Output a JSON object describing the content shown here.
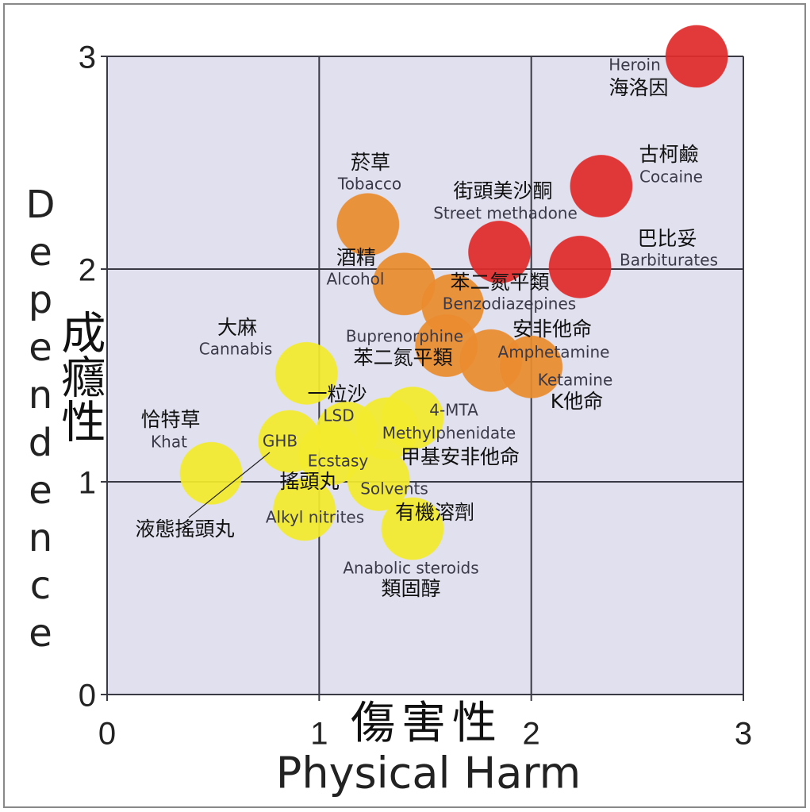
{
  "chart_data": {
    "type": "scatter",
    "x_title": "Physical Harm",
    "x_title_zh": "傷害性",
    "y_title": "Dependence",
    "y_title_zh": "成癮性",
    "labels": [
      "Heroin",
      "Cocaine",
      "Street methadone",
      "Barbiturates",
      "Tobacco",
      "Alcohol",
      "Benzodiazepines",
      "Buprenorphine",
      "Amphetamine",
      "Ketamine",
      "Cannabis",
      "4-MTA",
      "Methylphenidate",
      "LSD",
      "GHB",
      "Ecstasy",
      "Khat",
      "Solvents",
      "Alkyl nitrites",
      "Anabolic steroids"
    ],
    "labels_zh": [
      "海洛因",
      "古柯鹼",
      "街頭美沙酮",
      "巴比妥",
      "菸草",
      "酒精",
      "苯二氮平類",
      "苯二氮平類",
      "安非他命",
      "K他命",
      "大麻",
      null,
      "甲基安非他命",
      "一粒沙",
      "液態搖頭丸",
      "搖頭丸",
      "恰特草",
      "有機溶劑",
      null,
      "類固醇"
    ],
    "x": [
      2.78,
      2.33,
      1.85,
      2.23,
      1.23,
      1.4,
      1.63,
      1.6,
      1.81,
      2.0,
      0.94,
      1.44,
      1.32,
      1.13,
      0.86,
      1.05,
      0.49,
      1.28,
      0.93,
      1.44
    ],
    "values": [
      3.0,
      2.39,
      2.08,
      2.01,
      2.21,
      1.93,
      1.83,
      1.64,
      1.57,
      1.54,
      1.51,
      1.3,
      1.25,
      1.23,
      1.19,
      1.13,
      1.04,
      1.01,
      0.87,
      0.78
    ],
    "colors": [
      "#e02b2b",
      "#e02b2b",
      "#e02b2b",
      "#e02b2b",
      "#e98c2e",
      "#e98c2e",
      "#e98c2e",
      "#e98c2e",
      "#e98c2e",
      "#e98c2e",
      "#f3eb2d",
      "#f3eb2d",
      "#f3eb2d",
      "#f3eb2d",
      "#f3eb2d",
      "#f3eb2d",
      "#f3eb2d",
      "#f3eb2d",
      "#f3eb2d",
      "#f3eb2d"
    ],
    "xlim": [
      0,
      3
    ],
    "ylim": [
      0,
      3
    ],
    "xticks": [
      0,
      1,
      2,
      3
    ],
    "yticks": [
      0,
      1,
      2,
      3
    ],
    "grid": true
  }
}
